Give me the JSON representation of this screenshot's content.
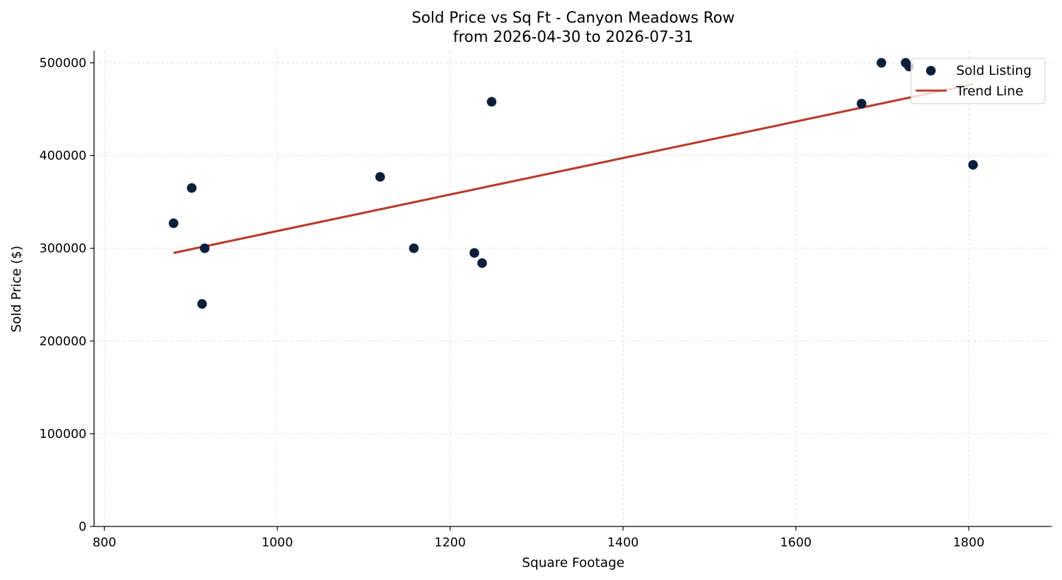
{
  "chart_data": {
    "type": "scatter",
    "title": "Sold Price vs Sq Ft - Canyon Meadows Row",
    "subtitle": "from 2026-04-30 to 2026-07-31",
    "xlabel": "Square Footage",
    "ylabel": "Sold Price ($)",
    "xlim": [
      788,
      1896
    ],
    "ylim": [
      0,
      513000
    ],
    "xticks": [
      800,
      1000,
      1200,
      1400,
      1600,
      1800
    ],
    "yticks": [
      0,
      100000,
      200000,
      300000,
      400000,
      500000
    ],
    "grid": true,
    "legend_position": "top-right",
    "colors": {
      "points": "#0b1f3a",
      "trend": "#b83c2c",
      "grid": "#d9d9d9"
    },
    "series": [
      {
        "name": "Sold Listing",
        "kind": "scatter",
        "points": [
          {
            "x": 880,
            "y": 327000
          },
          {
            "x": 901,
            "y": 365000
          },
          {
            "x": 913,
            "y": 240000
          },
          {
            "x": 916,
            "y": 300000
          },
          {
            "x": 1119,
            "y": 377000
          },
          {
            "x": 1158,
            "y": 300000
          },
          {
            "x": 1228,
            "y": 295000
          },
          {
            "x": 1237,
            "y": 284000
          },
          {
            "x": 1248,
            "y": 458000
          },
          {
            "x": 1676,
            "y": 456000
          },
          {
            "x": 1699,
            "y": 500000
          },
          {
            "x": 1727,
            "y": 500000
          },
          {
            "x": 1731,
            "y": 496000
          },
          {
            "x": 1805,
            "y": 390000
          }
        ]
      },
      {
        "name": "Trend Line",
        "kind": "line",
        "points": [
          {
            "x": 880,
            "y": 295000
          },
          {
            "x": 1805,
            "y": 477000
          }
        ]
      }
    ]
  }
}
